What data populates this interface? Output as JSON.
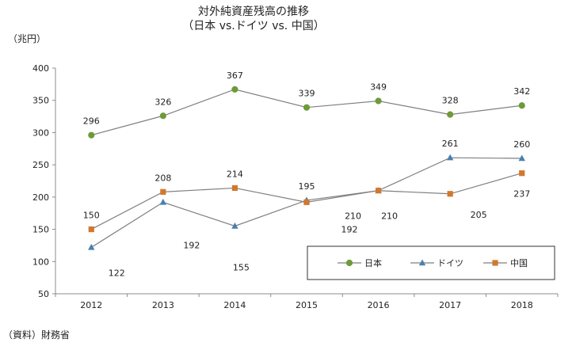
{
  "chart_data": {
    "type": "line",
    "title": "対外純資産残高の推移",
    "subtitle": "（日本 vs.ドイツ vs. 中国）",
    "ylabel": "（兆円）",
    "xlabel": "",
    "categories": [
      "2012",
      "2013",
      "2014",
      "2015",
      "2016",
      "2017",
      "2018"
    ],
    "ylim": [
      50,
      400
    ],
    "yticks": [
      50,
      100,
      150,
      200,
      250,
      300,
      350,
      400
    ],
    "grid": false,
    "legend_placement": "bottom-right",
    "series": [
      {
        "name": "日本",
        "color": "#6e9a3a",
        "marker": "circle",
        "values": [
          296,
          326,
          367,
          339,
          349,
          328,
          342
        ]
      },
      {
        "name": "ドイツ",
        "color": "#4a7fb0",
        "marker": "triangle",
        "values": [
          122,
          192,
          155,
          195,
          210,
          261,
          260
        ]
      },
      {
        "name": "中国",
        "color": "#d2782c",
        "marker": "square",
        "values": [
          150,
          208,
          214,
          192,
          210,
          205,
          237
        ]
      }
    ],
    "line_color": "#7f7f7f",
    "source": "（資料）財務省"
  }
}
